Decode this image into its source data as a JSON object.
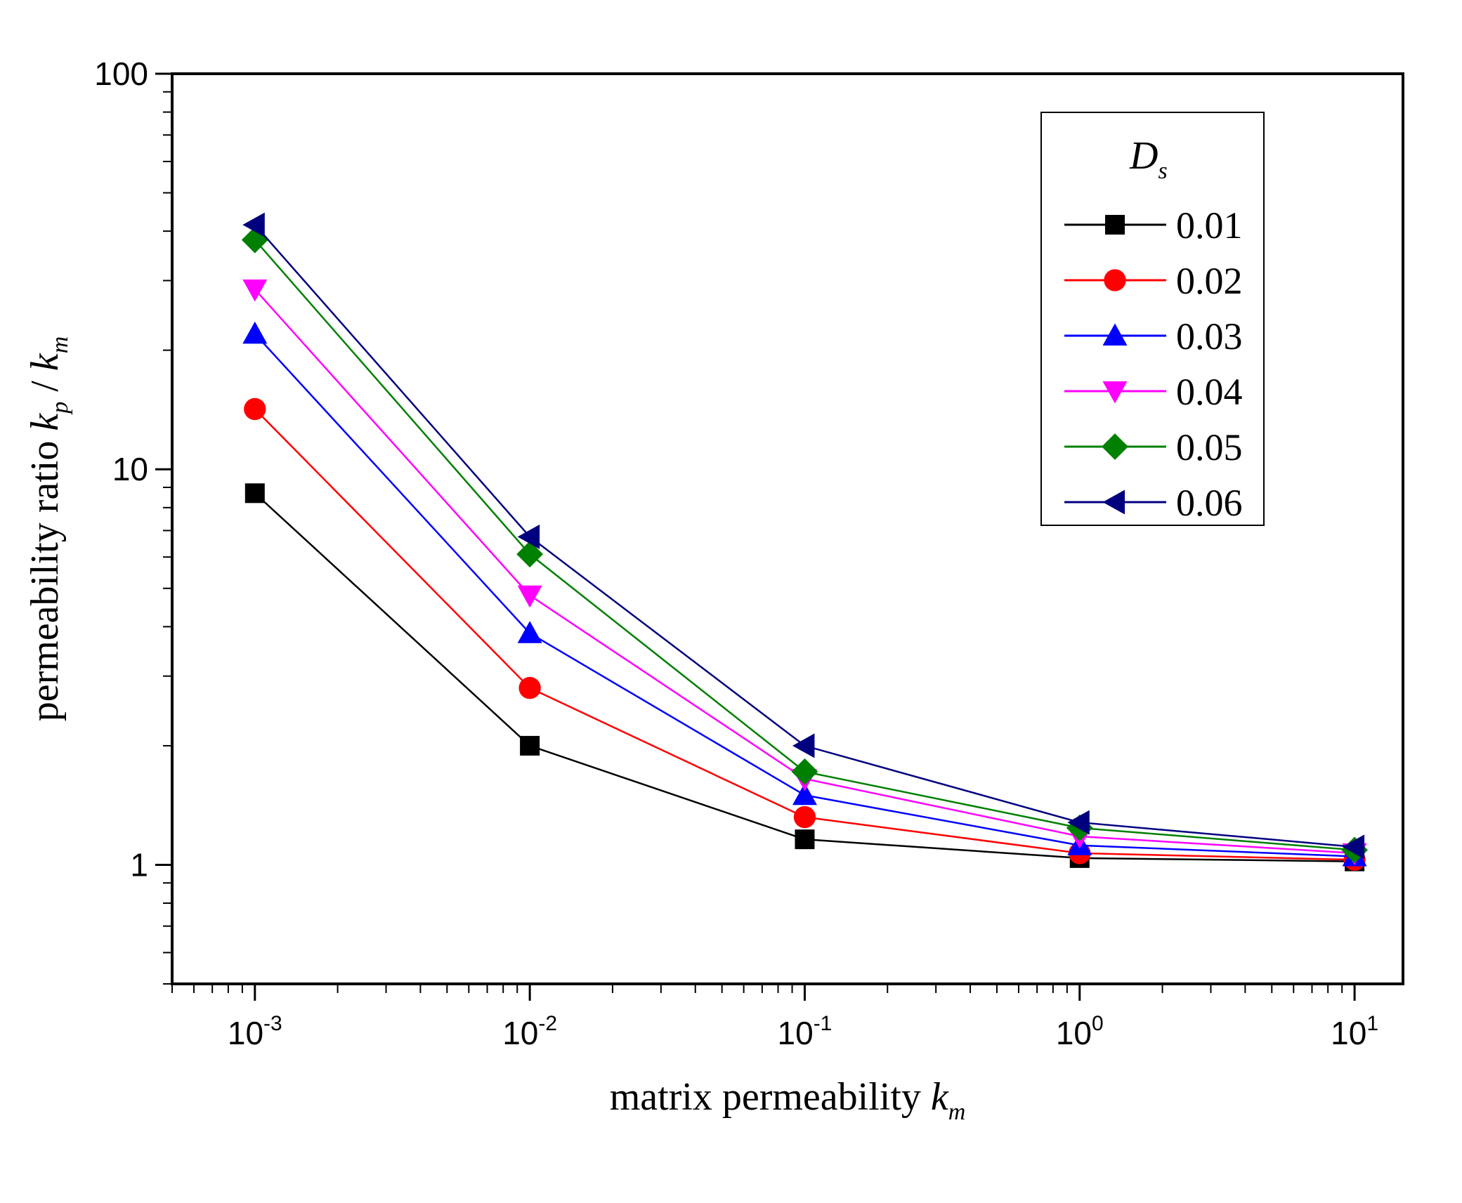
{
  "chart_data": {
    "type": "line",
    "x_scale": "log",
    "y_scale": "log",
    "xlim": [
      0.0005,
      15
    ],
    "ylim": [
      0.5,
      100
    ],
    "x": [
      0.001,
      0.01,
      0.1,
      1,
      10
    ],
    "x_tick_labels": [
      {
        "base": "10",
        "exp": "-3"
      },
      {
        "base": "10",
        "exp": "-2"
      },
      {
        "base": "10",
        "exp": "-1"
      },
      {
        "base": "10",
        "exp": "0"
      },
      {
        "base": "10",
        "exp": "1"
      }
    ],
    "y_tick_labels": [
      "1",
      "10",
      "100"
    ],
    "xlabel": {
      "text": "matrix permeability ",
      "var": "k",
      "sub": "m"
    },
    "ylabel": {
      "text": "permeability ratio ",
      "var1": "k",
      "sub1": "p",
      "sep": " / ",
      "var2": "k",
      "sub2": "m"
    },
    "legend": {
      "title": "D",
      "title_sub": "s",
      "placement": "top-right"
    },
    "series": [
      {
        "name": "0.01",
        "color": "#000000",
        "marker": "square",
        "values": [
          8.7,
          2.0,
          1.16,
          1.04,
          1.02
        ]
      },
      {
        "name": "0.02",
        "color": "#ff0000",
        "marker": "circle",
        "values": [
          14.2,
          2.8,
          1.32,
          1.07,
          1.03
        ]
      },
      {
        "name": "0.03",
        "color": "#0000ff",
        "marker": "triangle-up",
        "values": [
          22.0,
          3.85,
          1.5,
          1.12,
          1.05
        ]
      },
      {
        "name": "0.04",
        "color": "#ff00ff",
        "marker": "triangle-down",
        "values": [
          28.5,
          4.8,
          1.65,
          1.18,
          1.07
        ]
      },
      {
        "name": "0.05",
        "color": "#008000",
        "marker": "diamond",
        "values": [
          38.0,
          6.1,
          1.72,
          1.24,
          1.09
        ]
      },
      {
        "name": "0.06",
        "color": "#00007f",
        "marker": "triangle-left",
        "values": [
          41.5,
          6.75,
          2.0,
          1.28,
          1.11
        ]
      }
    ]
  }
}
